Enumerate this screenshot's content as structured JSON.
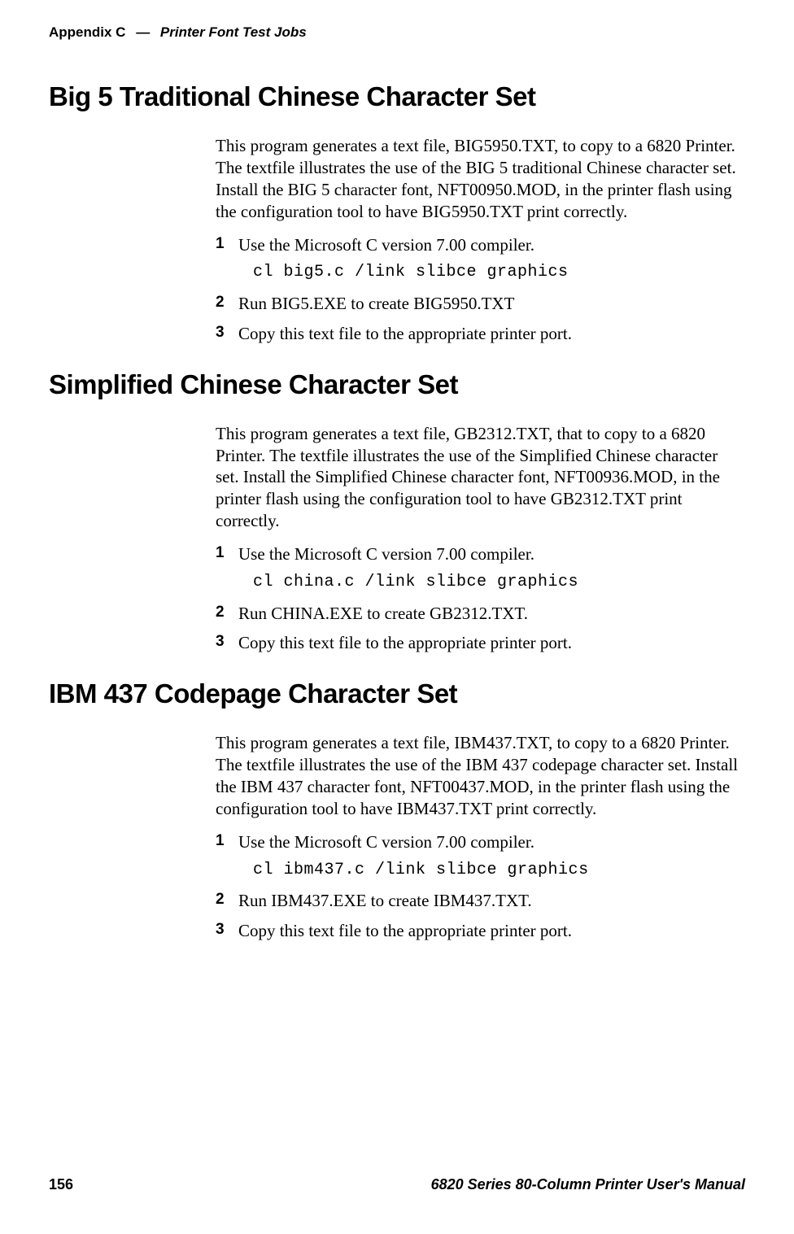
{
  "header": {
    "appendix_label": "Appendix  C",
    "dash": "—",
    "title": "Printer Font Test Jobs"
  },
  "sections": [
    {
      "heading": "Big 5 Traditional Chinese Character Set",
      "intro": "This program generates a text file, BIG5950.TXT, to copy to a 6820 Printer. The textfile illustrates the use of the BIG 5 traditional Chinese character set. Install the BIG 5 character font, NFT00950.MOD, in the printer flash using the configuration tool to have BIG5950.TXT print correctly.",
      "steps": [
        {
          "num": "1",
          "text": "Use the Microsoft C version 7.00 compiler.",
          "code": "cl big5.c /link slibce graphics"
        },
        {
          "num": "2",
          "text": "Run BIG5.EXE to create BIG5950.TXT"
        },
        {
          "num": "3",
          "text": "Copy this text file to the appropriate printer port."
        }
      ]
    },
    {
      "heading": "Simplified Chinese Character Set",
      "intro": "This program generates a text file, GB2312.TXT, that to copy to a 6820 Printer. The textfile illustrates the use of the Simplified Chinese character set. Install the Simplified Chinese character font, NFT00936.MOD, in the printer flash using the configuration tool to have GB2312.TXT print correctly.",
      "steps": [
        {
          "num": "1",
          "text": "Use the Microsoft C version 7.00 compiler.",
          "code": "cl china.c /link slibce graphics"
        },
        {
          "num": "2",
          "text": "Run CHINA.EXE to create GB2312.TXT."
        },
        {
          "num": "3",
          "text": "Copy this text file to the appropriate printer port."
        }
      ]
    },
    {
      "heading": "IBM 437 Codepage Character Set",
      "intro": "This program generates a text file, IBM437.TXT, to copy to a 6820 Printer. The textfile illustrates the use of the IBM 437 codepage character set. Install the IBM 437 character font, NFT00437.MOD, in the printer flash using the configuration tool to have IBM437.TXT print correctly.",
      "steps": [
        {
          "num": "1",
          "text": "Use the Microsoft C version 7.00 compiler.",
          "code": "cl ibm437.c /link slibce graphics"
        },
        {
          "num": "2",
          "text": "Run IBM437.EXE to create IBM437.TXT."
        },
        {
          "num": "3",
          "text": "Copy this text file to the appropriate printer port."
        }
      ]
    }
  ],
  "footer": {
    "page_number": "156",
    "manual_title": "6820 Series 80-Column Printer User's Manual"
  }
}
